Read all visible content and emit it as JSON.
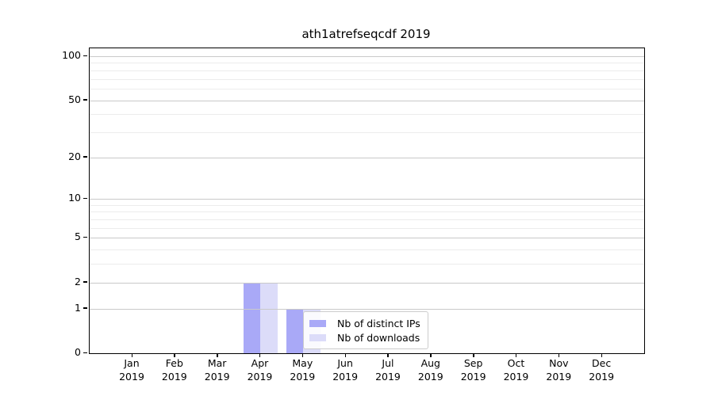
{
  "chart_data": {
    "type": "bar",
    "title": "ath1atrefseqcdf 2019",
    "categories": [
      "Jan 2019",
      "Feb 2019",
      "Mar 2019",
      "Apr 2019",
      "May 2019",
      "Jun 2019",
      "Jul 2019",
      "Aug 2019",
      "Sep 2019",
      "Oct 2019",
      "Nov 2019",
      "Dec 2019"
    ],
    "series": [
      {
        "name": "Nb of distinct IPs",
        "color": "#a9a9f7",
        "values": [
          0,
          0,
          0,
          2,
          1,
          0,
          0,
          0,
          0,
          0,
          0,
          0
        ]
      },
      {
        "name": "Nb of downloads",
        "color": "#dcdcf9",
        "values": [
          0,
          0,
          0,
          2,
          1,
          0,
          0,
          0,
          0,
          0,
          0,
          0
        ]
      }
    ],
    "xlabel": "",
    "ylabel": "",
    "yscale": "log1p",
    "ylim": [
      0,
      101
    ],
    "yticks": [
      0,
      1,
      2,
      5,
      10,
      20,
      50,
      100
    ],
    "yticks_minor": [
      3,
      4,
      6,
      7,
      8,
      9,
      30,
      40,
      60,
      70,
      80,
      90
    ],
    "grid": "horizontal-only",
    "legend_position": "lower center",
    "colors": {
      "grid_major": "#c9c9c9",
      "grid_minor": "#ececec",
      "axis": "#000000",
      "legend_border": "#cccccc",
      "background": "#ffffff"
    }
  }
}
